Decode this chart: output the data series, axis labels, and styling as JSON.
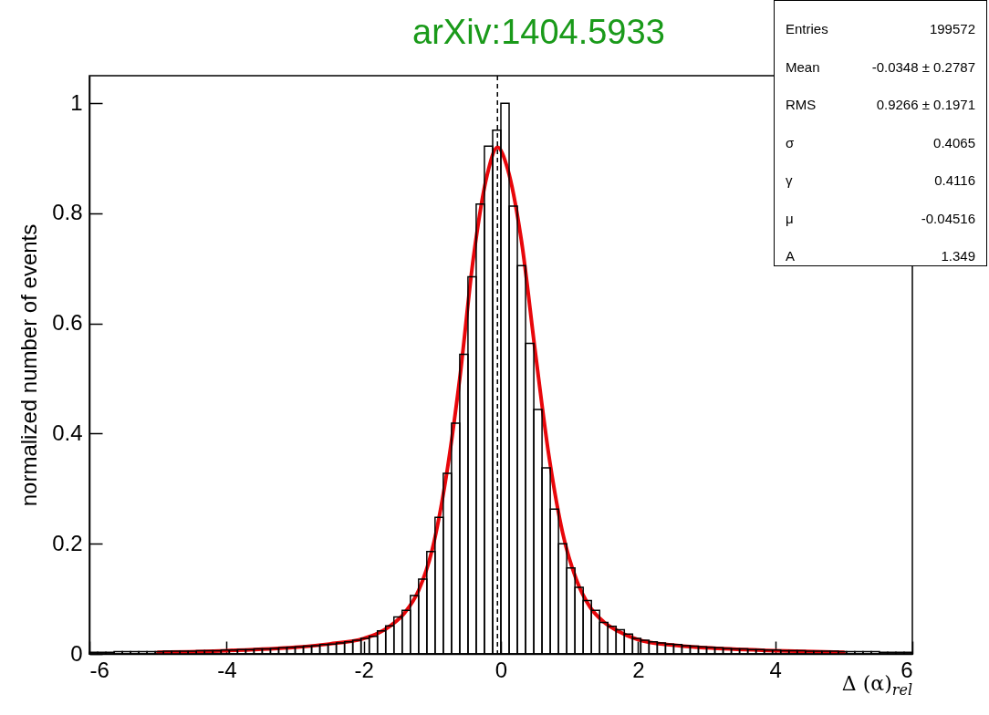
{
  "chart_data": {
    "type": "histogram",
    "xlabel": "Δ (α)$_{rel}$",
    "ylabel": "normalized number of events",
    "bins": [
      -6,
      -5.88,
      -5.76,
      -5.64,
      -5.52,
      -5.4,
      -5.28,
      -5.16,
      -5.04,
      -4.92,
      -4.8,
      -4.68,
      -4.56,
      -4.44,
      -4.32,
      -4.2,
      -4.08,
      -3.96,
      -3.84,
      -3.72,
      -3.6,
      -3.48,
      -3.36,
      -3.24,
      -3.12,
      -3,
      -2.88,
      -2.76,
      -2.64,
      -2.52,
      -2.4,
      -2.28,
      -2.16,
      -2.04,
      -1.92,
      -1.8,
      -1.68,
      -1.56,
      -1.44,
      -1.32,
      -1.2,
      -1.08,
      -0.96,
      -0.84,
      -0.72,
      -0.6,
      -0.48,
      -0.36,
      -0.24,
      -0.12,
      0,
      0.12,
      0.24,
      0.36,
      0.48,
      0.6,
      0.72,
      0.84,
      0.96,
      1.08,
      1.2,
      1.32,
      1.44,
      1.56,
      1.68,
      1.8,
      1.92,
      2.04,
      2.16,
      2.28,
      2.4,
      2.52,
      2.64,
      2.76,
      2.88,
      3,
      3.12,
      3.24,
      3.36,
      3.48,
      3.6,
      3.72,
      3.84,
      3.96,
      4.08,
      4.2,
      4.32,
      4.44,
      4.56,
      4.68,
      4.8,
      4.92,
      5.04,
      5.16,
      5.28,
      5.4,
      5.52,
      5.64,
      5.76,
      5.88,
      6
    ],
    "values": [
      0.003,
      0.003,
      0.003,
      0.004,
      0.004,
      0.004,
      0.004,
      0.004,
      0.004,
      0.005,
      0.005,
      0.005,
      0.005,
      0.006,
      0.006,
      0.006,
      0.007,
      0.007,
      0.008,
      0.008,
      0.009,
      0.009,
      0.01,
      0.011,
      0.012,
      0.013,
      0.014,
      0.015,
      0.017,
      0.018,
      0.02,
      0.022,
      0.025,
      0.028,
      0.032,
      0.042,
      0.051,
      0.067,
      0.079,
      0.106,
      0.136,
      0.186,
      0.248,
      0.328,
      0.419,
      0.544,
      0.685,
      0.817,
      0.922,
      0.951,
      1.0,
      0.813,
      0.705,
      0.564,
      0.444,
      0.338,
      0.263,
      0.2,
      0.156,
      0.121,
      0.097,
      0.079,
      0.057,
      0.05,
      0.044,
      0.036,
      0.028,
      0.025,
      0.022,
      0.02,
      0.018,
      0.017,
      0.015,
      0.014,
      0.013,
      0.012,
      0.011,
      0.01,
      0.009,
      0.009,
      0.008,
      0.008,
      0.007,
      0.007,
      0.006,
      0.006,
      0.006,
      0.005,
      0.005,
      0.005,
      0.005,
      0.004,
      0.004,
      0.004,
      0.004,
      0.004,
      0.003,
      0.003,
      0.003,
      0.003
    ],
    "color": "#000000",
    "series": [
      {
        "type": "line",
        "color": "#e8070b",
        "x": [
          -5,
          -4,
          -3,
          -2.5,
          -2,
          -1.8,
          -1.6,
          -1.4,
          -1.2,
          -1,
          -0.8,
          -0.6,
          -0.4,
          -0.2,
          -0.05,
          0.1,
          0.3,
          0.5,
          0.7,
          0.9,
          1.1,
          1.3,
          1.5,
          1.7,
          2,
          2.5,
          3,
          4,
          5
        ],
        "values": [
          0.003,
          0.006,
          0.012,
          0.018,
          0.028,
          0.037,
          0.052,
          0.075,
          0.115,
          0.19,
          0.32,
          0.5,
          0.72,
          0.87,
          0.92,
          0.88,
          0.75,
          0.55,
          0.36,
          0.22,
          0.135,
          0.085,
          0.058,
          0.042,
          0.026,
          0.016,
          0.011,
          0.006,
          0.003
        ]
      }
    ],
    "ref_lines": [
      {
        "axis": "x",
        "value": -0.05,
        "color": "#000000",
        "line_style": "dashed"
      }
    ],
    "xlim": [
      -6,
      6
    ],
    "xticks": [
      -6,
      -4,
      -2,
      0,
      2,
      4,
      6
    ],
    "ylim": [
      0,
      1.05
    ],
    "yticks": [
      0,
      0.2,
      0.4,
      0.6,
      0.8,
      1
    ],
    "grid": false,
    "legend": false,
    "annotations": [
      "arXiv:1404.5933",
      "Entries",
      "199572",
      "Mean",
      "-0.0348 ± 0.2787",
      "RMS",
      "0.9266 ± 0.1971",
      "σ",
      "0.4065",
      "γ",
      "0.4116",
      "μ",
      "-0.04516",
      "A",
      "1.349"
    ]
  }
}
